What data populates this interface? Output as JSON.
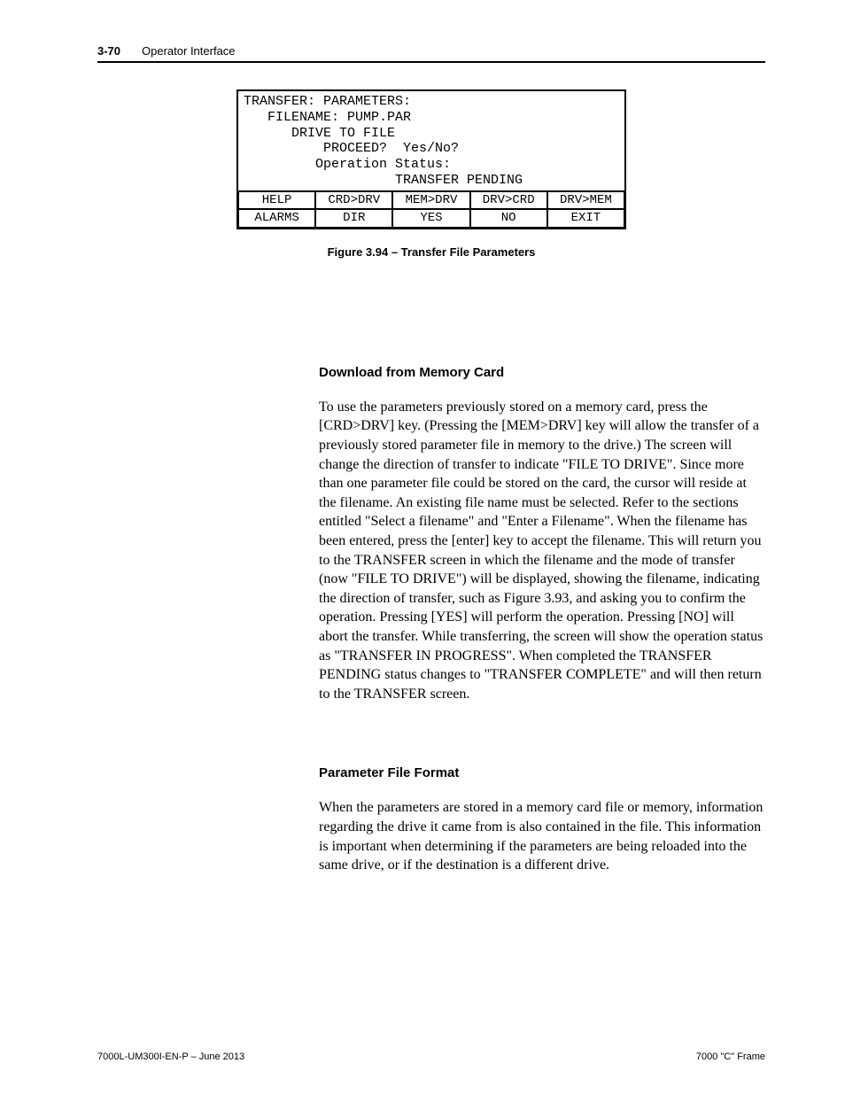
{
  "header": {
    "page_number": "3-70",
    "section": "Operator Interface"
  },
  "lcd": {
    "title": "TRANSFER: PARAMETERS:",
    "lines": {
      "filename": "   FILENAME: PUMP.PAR",
      "direction": "      DRIVE TO FILE",
      "proceed": "          PROCEED?  Yes/No?",
      "opstatus": "         Operation Status:",
      "status": "                   TRANSFER PENDING"
    },
    "keys_row1": {
      "c0": "HELP",
      "c1": "CRD>DRV",
      "c2": "MEM>DRV",
      "c3": "DRV>CRD",
      "c4": "DRV>MEM"
    },
    "keys_row2": {
      "c0": "ALARMS",
      "c1": "DIR",
      "c2": "YES",
      "c3": "NO",
      "c4": "EXIT"
    }
  },
  "figure_caption": "Figure 3.94 – Transfer File Parameters",
  "headings": {
    "download": "Download from Memory Card",
    "format": "Parameter File Format"
  },
  "paragraphs": {
    "p1a": "To use the parameters previously stored on a memory card, press the [CRD>DRV] key. (Pressing the [MEM>DRV] key will allow the transfer of a previously stored parameter file in memory to the drive.) The screen will change the direction of transfer to indicate \"FILE TO DRIVE\". Since more than one parameter file could be stored on the card, the cursor will reside at the filename. An existing file name must be selected. Refer ",
    "p1b": "to the sections entitled \"",
    "p1c": "Select a filename",
    "p1d": "\" and \"",
    "p1e": "Enter a Filename",
    "p1f": "\".   When the filename has been entered, press the [enter] key to accept the filename. This will return you to the TRANSFER screen in which the filename and the mode of transfer (n",
    "p1g": "ow \"FILE TO DRIVE\") will be displayed, showing the filename, indicating the direction of transfer, such as Figure 3.93, and asking you to confirm the operation. Pressing [YES] will perform the operation. Pressing [NO] will abort the transfer. While transferring, the screen will show the operation status as \"TRANSFER IN PROGRESS\". When completed the TRANSFER PENDING status changes to \"TRANSFER COMPLETE\" and will then return to the TRANSFER screen.",
    "p2": "When the parameters are stored in a memory card file or memory, information regarding the drive it came from is also contained in the file. This information is important when determining if the parameters are being reloaded into the same drive, or if the destination is a different drive."
  },
  "footer": {
    "left": "7000L-UM300I-EN-P – June 2013",
    "right": "7000 \"C\" Frame"
  }
}
